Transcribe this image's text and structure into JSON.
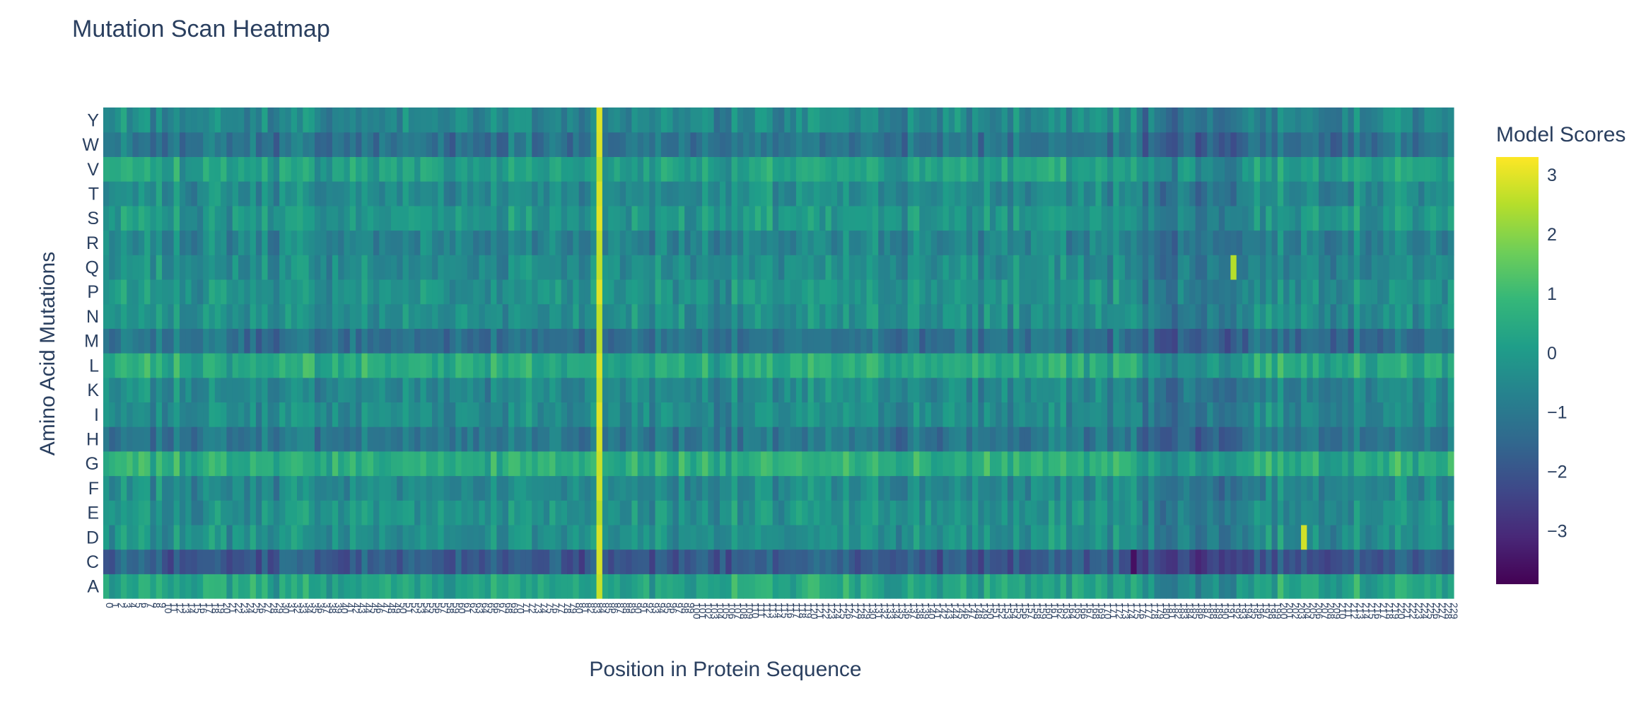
{
  "chart_data": {
    "type": "heatmap",
    "title": "Mutation Scan Heatmap",
    "xlabel": "Position in Protein Sequence",
    "ylabel": "Amino Acid Mutations",
    "colorbar_title": "Model Scores",
    "colorscale": "Viridis",
    "zrange": [
      -3.9,
      3.3
    ],
    "colorbar_ticks": [
      3,
      2,
      1,
      0,
      -1,
      -2,
      -3
    ],
    "y_categories": [
      "A",
      "C",
      "D",
      "E",
      "F",
      "G",
      "H",
      "I",
      "K",
      "L",
      "M",
      "N",
      "P",
      "Q",
      "R",
      "S",
      "T",
      "V",
      "W",
      "Y"
    ],
    "x_count": 230,
    "row_mean_scores": {
      "A": 0.3,
      "C": -1.8,
      "D": -0.3,
      "E": -0.2,
      "F": -0.5,
      "G": 0.6,
      "H": -1.0,
      "I": -0.4,
      "K": -0.5,
      "L": 0.5,
      "M": -1.2,
      "N": -0.3,
      "P": -0.2,
      "Q": -0.4,
      "R": -0.6,
      "S": -0.1,
      "T": -0.4,
      "V": 0.2,
      "W": -1.1,
      "Y": -0.5
    },
    "notable_columns": [
      {
        "index": 84,
        "description": "high-score column",
        "value": 3.0
      },
      {
        "index": 204,
        "row": "D",
        "value": 2.8
      },
      {
        "index": 192,
        "row": "Q",
        "value": 2.5
      },
      {
        "index": 175,
        "row": "C",
        "value": -3.6
      }
    ]
  }
}
